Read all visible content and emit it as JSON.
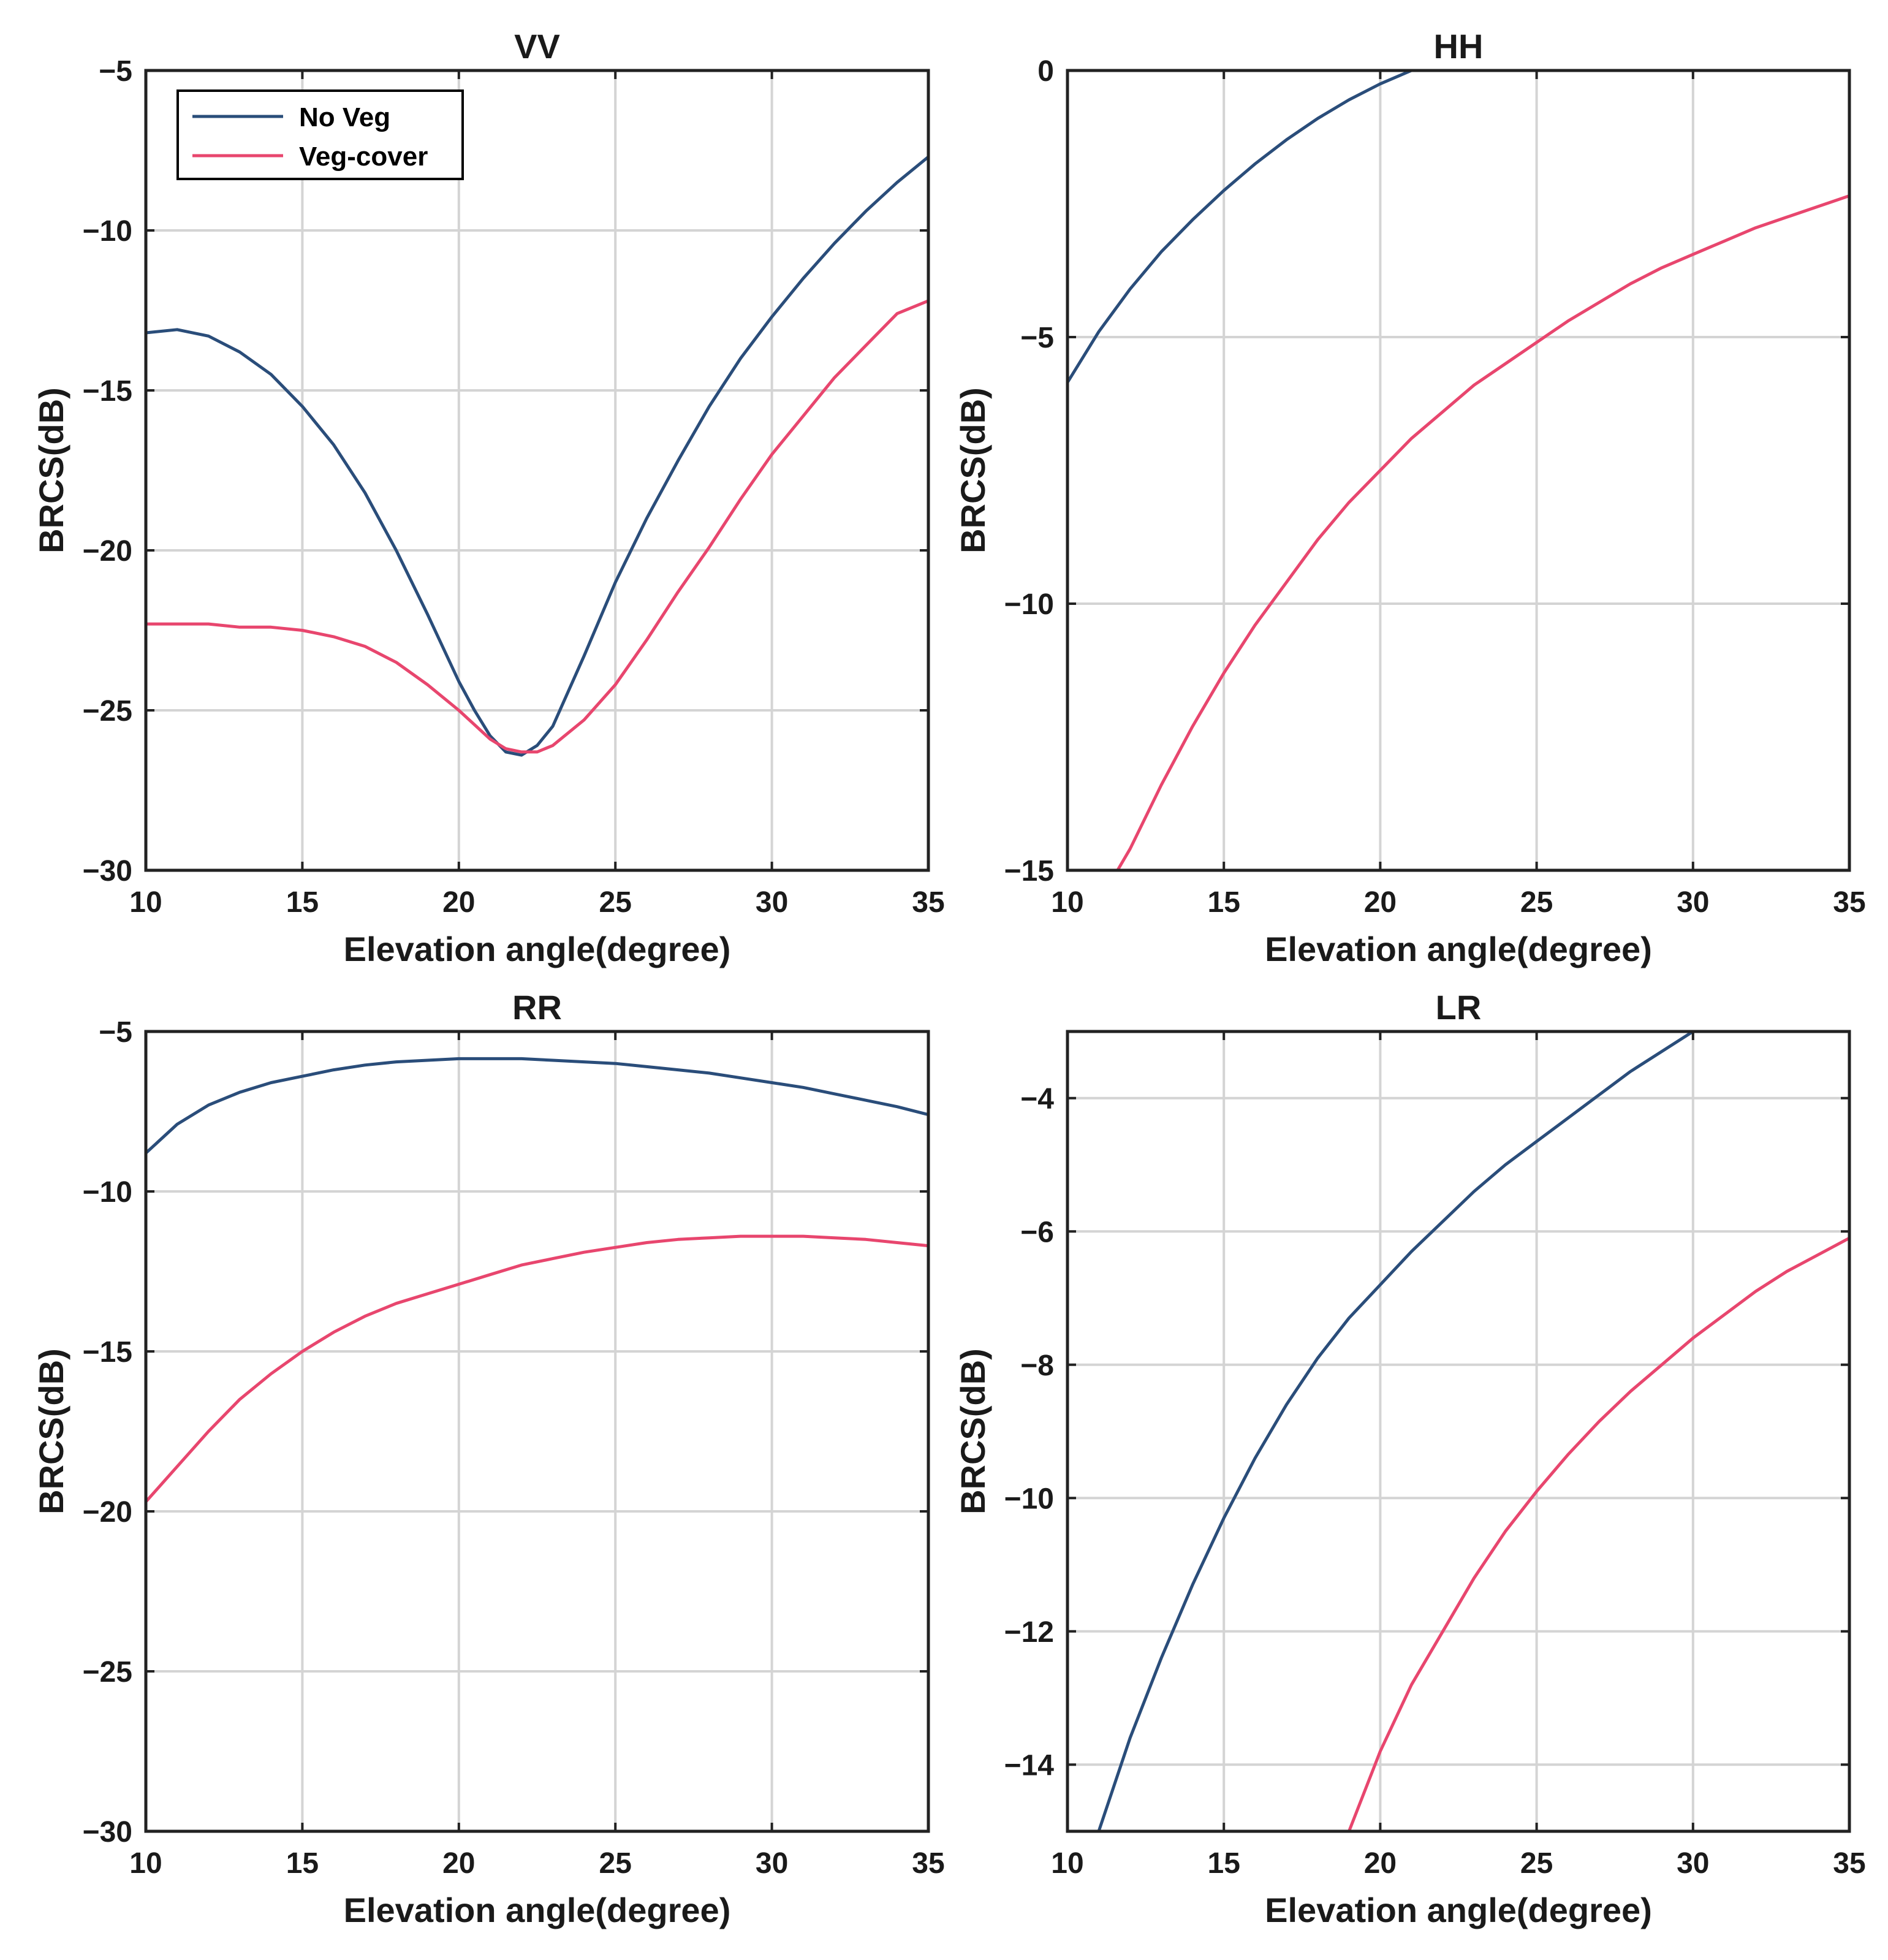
{
  "figure": {
    "legend": {
      "entries": [
        "No Veg",
        "Veg-cover"
      ],
      "placement": "top-left of first panel"
    }
  },
  "colors": {
    "series_no_veg": "#2a4d7a",
    "series_veg_cover": "#e8466e",
    "axis": "#222222",
    "grid": "#d4d4d4"
  },
  "chart_data": [
    {
      "type": "line",
      "title": "VV",
      "xlabel": "Elevation angle(degree)",
      "ylabel": "BRCS(dB)",
      "xlim": [
        10,
        35
      ],
      "ylim": [
        -30,
        -5
      ],
      "xticks": [
        10,
        15,
        20,
        25,
        30,
        35
      ],
      "yticks": [
        -30,
        -25,
        -20,
        -15,
        -10,
        -5
      ],
      "ytick_labels": [
        "−30",
        "−25",
        "−20",
        "−15",
        "−10",
        "−5"
      ],
      "grid": true,
      "legend": "top-left",
      "series": [
        {
          "name": "No Veg",
          "x": [
            10,
            11,
            12,
            13,
            14,
            15,
            16,
            17,
            18,
            19,
            20,
            20.5,
            21,
            21.5,
            22,
            22.5,
            23,
            24,
            25,
            26,
            27,
            28,
            29,
            30,
            31,
            32,
            33,
            34,
            35
          ],
          "values": [
            -13.2,
            -13.1,
            -13.3,
            -13.8,
            -14.5,
            -15.5,
            -16.7,
            -18.2,
            -20.0,
            -22.0,
            -24.1,
            -25.0,
            -25.8,
            -26.3,
            -26.4,
            -26.1,
            -25.5,
            -23.3,
            -21.0,
            -19.0,
            -17.2,
            -15.5,
            -14.0,
            -12.7,
            -11.5,
            -10.4,
            -9.4,
            -8.5,
            -7.7
          ]
        },
        {
          "name": "Veg-cover",
          "x": [
            10,
            11,
            12,
            13,
            14,
            15,
            16,
            17,
            18,
            19,
            20,
            21,
            21.5,
            22,
            22.5,
            23,
            24,
            25,
            26,
            27,
            28,
            29,
            30,
            31,
            32,
            33,
            34,
            35
          ],
          "values": [
            -22.3,
            -22.3,
            -22.3,
            -22.4,
            -22.4,
            -22.5,
            -22.7,
            -23.0,
            -23.5,
            -24.2,
            -25.0,
            -25.9,
            -26.2,
            -26.3,
            -26.3,
            -26.1,
            -25.3,
            -24.2,
            -22.8,
            -21.3,
            -19.9,
            -18.4,
            -17.0,
            -15.8,
            -14.6,
            -13.6,
            -12.6,
            -12.2
          ]
        }
      ]
    },
    {
      "type": "line",
      "title": "HH",
      "xlabel": "Elevation angle(degree)",
      "ylabel": "BRCS(dB)",
      "xlim": [
        10,
        35
      ],
      "ylim": [
        -15,
        0
      ],
      "xticks": [
        10,
        15,
        20,
        25,
        30,
        35
      ],
      "yticks": [
        -15,
        -10,
        -5,
        0
      ],
      "ytick_labels": [
        "−15",
        "−10",
        "−5",
        "0"
      ],
      "grid": true,
      "series": [
        {
          "name": "No Veg",
          "x": [
            10,
            11,
            12,
            13,
            14,
            15,
            16,
            17,
            18,
            19,
            20,
            21,
            21.3
          ],
          "values": [
            -5.85,
            -4.9,
            -4.1,
            -3.4,
            -2.8,
            -2.25,
            -1.75,
            -1.3,
            -0.9,
            -0.55,
            -0.25,
            0.0,
            0.0
          ]
        },
        {
          "name": "Veg-cover",
          "x": [
            11.6,
            12,
            13,
            14,
            15,
            16,
            17,
            18,
            19,
            20,
            21,
            22,
            23,
            24,
            25,
            26,
            27,
            28,
            29,
            30,
            31,
            32,
            33,
            34,
            35
          ],
          "values": [
            -15.0,
            -14.6,
            -13.4,
            -12.3,
            -11.3,
            -10.4,
            -9.6,
            -8.8,
            -8.1,
            -7.5,
            -6.9,
            -6.4,
            -5.9,
            -5.5,
            -5.1,
            -4.7,
            -4.35,
            -4.0,
            -3.7,
            -3.45,
            -3.2,
            -2.95,
            -2.75,
            -2.55,
            -2.35
          ]
        }
      ]
    },
    {
      "type": "line",
      "title": "RR",
      "xlabel": "Elevation angle(degree)",
      "ylabel": "BRCS(dB)",
      "xlim": [
        10,
        35
      ],
      "ylim": [
        -30,
        -5
      ],
      "xticks": [
        10,
        15,
        20,
        25,
        30,
        35
      ],
      "yticks": [
        -30,
        -25,
        -20,
        -15,
        -10,
        -5
      ],
      "ytick_labels": [
        "−30",
        "−25",
        "−20",
        "−15",
        "−10",
        "−5"
      ],
      "grid": true,
      "series": [
        {
          "name": "No Veg",
          "x": [
            10,
            11,
            12,
            13,
            14,
            15,
            16,
            17,
            18,
            19,
            20,
            21,
            22,
            23,
            24,
            25,
            26,
            27,
            28,
            29,
            30,
            31,
            32,
            33,
            34,
            35
          ],
          "values": [
            -8.8,
            -7.9,
            -7.3,
            -6.9,
            -6.6,
            -6.4,
            -6.2,
            -6.05,
            -5.95,
            -5.9,
            -5.85,
            -5.85,
            -5.85,
            -5.9,
            -5.95,
            -6.0,
            -6.1,
            -6.2,
            -6.3,
            -6.45,
            -6.6,
            -6.75,
            -6.95,
            -7.15,
            -7.35,
            -7.6
          ]
        },
        {
          "name": "Veg-cover",
          "x": [
            10,
            11,
            12,
            13,
            14,
            15,
            16,
            17,
            18,
            19,
            20,
            21,
            22,
            23,
            24,
            25,
            26,
            27,
            28,
            29,
            30,
            31,
            32,
            33,
            34,
            35
          ],
          "values": [
            -19.7,
            -18.6,
            -17.5,
            -16.5,
            -15.7,
            -15.0,
            -14.4,
            -13.9,
            -13.5,
            -13.2,
            -12.9,
            -12.6,
            -12.3,
            -12.1,
            -11.9,
            -11.75,
            -11.6,
            -11.5,
            -11.45,
            -11.4,
            -11.4,
            -11.4,
            -11.45,
            -11.5,
            -11.6,
            -11.7
          ]
        }
      ]
    },
    {
      "type": "line",
      "title": "LR",
      "xlabel": "Elevation angle(degree)",
      "ylabel": "BRCS(dB)",
      "xlim": [
        10,
        35
      ],
      "ylim": [
        -15,
        -3
      ],
      "xticks": [
        10,
        15,
        20,
        25,
        30,
        35
      ],
      "yticks": [
        -14,
        -12,
        -10,
        -8,
        -6,
        -4
      ],
      "ytick_labels": [
        "−14",
        "−12",
        "−10",
        "−8",
        "−6",
        "−4"
      ],
      "grid": true,
      "series": [
        {
          "name": "No Veg",
          "x": [
            11,
            12,
            13,
            14,
            15,
            16,
            17,
            18,
            19,
            20,
            21,
            22,
            23,
            24,
            25,
            26,
            27,
            28,
            29,
            30
          ],
          "values": [
            -15.0,
            -13.6,
            -12.4,
            -11.3,
            -10.3,
            -9.4,
            -8.6,
            -7.9,
            -7.3,
            -6.8,
            -6.3,
            -5.85,
            -5.4,
            -5.0,
            -4.65,
            -4.3,
            -3.95,
            -3.6,
            -3.3,
            -3.0
          ]
        },
        {
          "name": "Veg-cover",
          "x": [
            19,
            20,
            21,
            22,
            23,
            24,
            25,
            26,
            27,
            28,
            29,
            30,
            31,
            32,
            33,
            34,
            35
          ],
          "values": [
            -15.0,
            -13.8,
            -12.8,
            -12.0,
            -11.2,
            -10.5,
            -9.9,
            -9.35,
            -8.85,
            -8.4,
            -8.0,
            -7.6,
            -7.25,
            -6.9,
            -6.6,
            -6.35,
            -6.1
          ]
        }
      ]
    }
  ]
}
